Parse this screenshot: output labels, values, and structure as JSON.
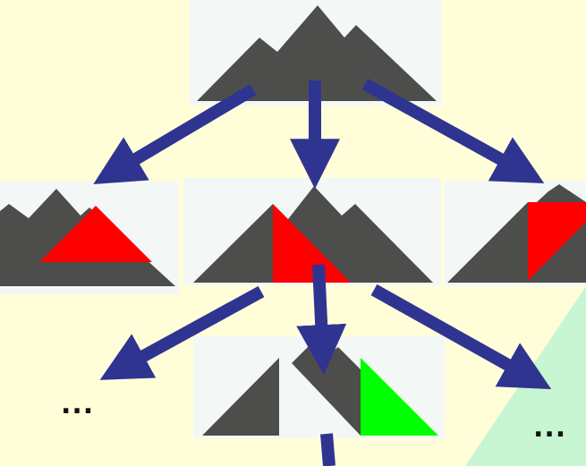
{
  "colors": {
    "background": "#fffed8",
    "green_region": "#c8f5d2",
    "panel": "#f3f8f6",
    "mountain": "#4d4e4b",
    "highlight_red": "#ff0000",
    "highlight_green": "#00ff00",
    "arrow": "#2f3491"
  },
  "labels": {
    "left_ellipsis": "...",
    "right_ellipsis": "..."
  },
  "icons": {
    "arrow": "arrow-icon"
  }
}
